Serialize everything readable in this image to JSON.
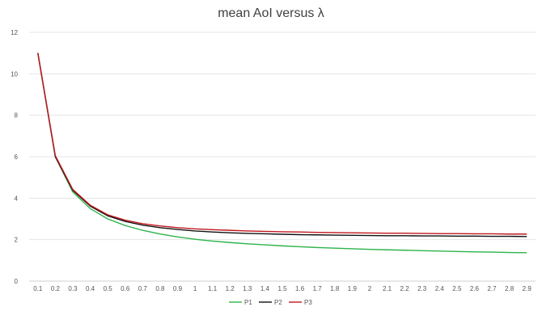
{
  "chart_data": {
    "type": "line",
    "title": "mean AoI versus λ",
    "xlabel": "",
    "ylabel": "",
    "ylim": [
      0,
      12
    ],
    "yticks": [
      0,
      2,
      4,
      6,
      8,
      10,
      12
    ],
    "grid": true,
    "legend_position": "bottom",
    "categories": [
      "0.1",
      "0.2",
      "0.3",
      "0.4",
      "0.5",
      "0.6",
      "0.7",
      "0.8",
      "0.9",
      "1",
      "1.1",
      "1.2",
      "1.3",
      "1.4",
      "1.5",
      "1.6",
      "1.7",
      "1.8",
      "1.9",
      "2",
      "2.1",
      "2.2",
      "2.3",
      "2.4",
      "2.5",
      "2.6",
      "2.7",
      "2.8",
      "2.9"
    ],
    "series": [
      {
        "name": "P1",
        "color": "#2db34a",
        "values": [
          11.0,
          6.0,
          4.3,
          3.5,
          3.0,
          2.68,
          2.45,
          2.27,
          2.13,
          2.02,
          1.93,
          1.86,
          1.8,
          1.75,
          1.7,
          1.66,
          1.62,
          1.59,
          1.56,
          1.53,
          1.51,
          1.49,
          1.47,
          1.45,
          1.43,
          1.41,
          1.4,
          1.38,
          1.37
        ]
      },
      {
        "name": "P2",
        "color": "#111111",
        "values": [
          11.0,
          6.0,
          4.38,
          3.62,
          3.15,
          2.88,
          2.7,
          2.58,
          2.49,
          2.42,
          2.37,
          2.33,
          2.3,
          2.28,
          2.26,
          2.24,
          2.23,
          2.22,
          2.21,
          2.2,
          2.19,
          2.19,
          2.18,
          2.18,
          2.17,
          2.17,
          2.16,
          2.16,
          2.15
        ]
      },
      {
        "name": "P3",
        "color": "#c0181e",
        "values": [
          11.0,
          6.05,
          4.42,
          3.66,
          3.2,
          2.94,
          2.77,
          2.66,
          2.58,
          2.52,
          2.48,
          2.45,
          2.42,
          2.4,
          2.38,
          2.37,
          2.35,
          2.34,
          2.33,
          2.32,
          2.31,
          2.31,
          2.3,
          2.29,
          2.29,
          2.28,
          2.28,
          2.27,
          2.27
        ]
      }
    ]
  }
}
